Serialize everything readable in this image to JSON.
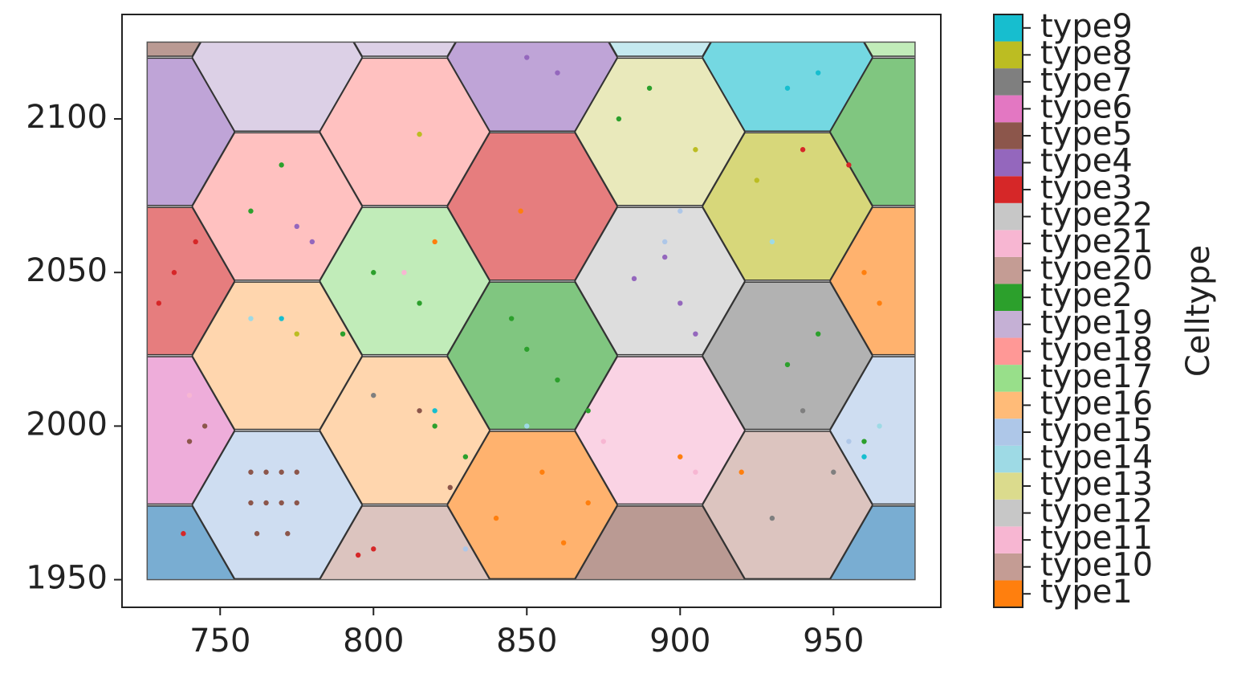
{
  "chart_data": {
    "type": "hexbin_scatter",
    "xlim": [
      718,
      985
    ],
    "ylim": [
      1941,
      2134
    ],
    "xticks": [
      750,
      800,
      850,
      900,
      950
    ],
    "yticks": [
      1950,
      2000,
      2050,
      2100
    ],
    "extent": [
      726.2,
      976.6,
      1950,
      2125
    ],
    "hex_radius": 27.7,
    "hex_opacity": 0.6,
    "hexagons": {
      "x": [
        727,
        727,
        727,
        727,
        727,
        768.6,
        768.6,
        768.6,
        768.6,
        810.2,
        810.2,
        810.2,
        810.2,
        810.2,
        851.8,
        851.8,
        851.8,
        851.8,
        893.4,
        893.4,
        893.4,
        893.4,
        893.4,
        935,
        935,
        935,
        935,
        976.6,
        976.6,
        976.6,
        976.6,
        976.6
      ],
      "y": [
        2144.4,
        2095.8,
        2047.2,
        1998.6,
        1950,
        2120,
        2071.5,
        2022.9,
        1974.3,
        2144.4,
        2095.8,
        2047.2,
        1998.6,
        1950,
        2120,
        2071.5,
        2022.9,
        1974.3,
        2144.4,
        2095.8,
        2047.2,
        1998.6,
        1950,
        2120,
        2071.5,
        2022.9,
        1974.3,
        2144.4,
        2095.8,
        2047.2,
        1998.6,
        1950
      ],
      "color": [
        "#8c564b",
        "#9467bd",
        "#d62728",
        "#e377c2",
        "#1f77b4",
        "#c5b0d5",
        "#ff9896",
        "#ffbb78",
        "#aec7e8",
        "#c5b0d5",
        "#ff9896",
        "#98df8a",
        "#ffbb78",
        "#c49c94",
        "#9467bd",
        "#d62728",
        "#2ca02c",
        "#ff7f0e",
        "#9edae5",
        "#dbdb8d",
        "#c7c7c7",
        "#f7b6d2",
        "#8c564b",
        "#17becf",
        "#bcbd22",
        "#7f7f7f",
        "#c49c94",
        "#98df8a",
        "#2ca02c",
        "#ff7f0e",
        "#aec7e8",
        "#1f77b4"
      ]
    },
    "colorbar_title": "Celltype",
    "series": [
      {
        "name": "type1",
        "color": "#ff7f0e",
        "x": [
          855,
          840,
          870,
          862,
          848,
          820,
          900,
          920,
          960,
          965
        ],
        "y": [
          1985,
          1970,
          1975,
          1962,
          2070,
          2060,
          1990,
          1985,
          2050,
          2040
        ]
      },
      {
        "name": "type10",
        "color": "#c49c94",
        "x": [],
        "y": []
      },
      {
        "name": "type11",
        "color": "#f7b6d2",
        "x": [],
        "y": []
      },
      {
        "name": "type12",
        "color": "#c7c7c7",
        "x": [],
        "y": []
      },
      {
        "name": "type13",
        "color": "#dbdb8d",
        "x": [],
        "y": []
      },
      {
        "name": "type14",
        "color": "#9edae5",
        "x": [
          760,
          930,
          850,
          965
        ],
        "y": [
          2035,
          2060,
          2000,
          2000
        ]
      },
      {
        "name": "type15",
        "color": "#aec7e8",
        "x": [
          895,
          900,
          830,
          955
        ],
        "y": [
          2060,
          2070,
          1960,
          1995
        ]
      },
      {
        "name": "type16",
        "color": "#ffbb78",
        "x": [],
        "y": []
      },
      {
        "name": "type17",
        "color": "#98df8a",
        "x": [],
        "y": []
      },
      {
        "name": "type18",
        "color": "#ff9896",
        "x": [],
        "y": []
      },
      {
        "name": "type19",
        "color": "#c5b0d5",
        "x": [],
        "y": []
      },
      {
        "name": "type2",
        "color": "#2ca02c",
        "x": [
          850,
          860,
          845,
          870,
          800,
          815,
          790,
          760,
          770,
          945,
          935,
          960,
          880,
          890,
          830,
          820
        ],
        "y": [
          2025,
          2015,
          2035,
          2005,
          2050,
          2040,
          2030,
          2070,
          2085,
          2030,
          2020,
          1995,
          2100,
          2110,
          1990,
          2000
        ]
      },
      {
        "name": "type20",
        "color": "#c49c94",
        "x": [],
        "y": []
      },
      {
        "name": "type21",
        "color": "#f7b6d2",
        "x": [
          875,
          905,
          810,
          740
        ],
        "y": [
          1995,
          1985,
          2050,
          2010
        ]
      },
      {
        "name": "type22",
        "color": "#c7c7c7",
        "x": [],
        "y": []
      },
      {
        "name": "type3",
        "color": "#d62728",
        "x": [
          735,
          730,
          742,
          738,
          800,
          795,
          940,
          955
        ],
        "y": [
          2050,
          2040,
          2060,
          1965,
          1960,
          1958,
          2090,
          2085
        ]
      },
      {
        "name": "type4",
        "color": "#9467bd",
        "x": [
          900,
          895,
          905,
          885,
          775,
          780,
          860,
          850
        ],
        "y": [
          2040,
          2055,
          2030,
          2048,
          2065,
          2060,
          2115,
          2120
        ]
      },
      {
        "name": "type5",
        "color": "#8c564b",
        "x": [
          760,
          765,
          770,
          775,
          760,
          765,
          770,
          775,
          762,
          772,
          740,
          745,
          815,
          825
        ],
        "y": [
          1985,
          1985,
          1985,
          1985,
          1975,
          1975,
          1975,
          1975,
          1965,
          1965,
          1995,
          2000,
          2005,
          1980
        ]
      },
      {
        "name": "type6",
        "color": "#e377c2",
        "x": [],
        "y": []
      },
      {
        "name": "type7",
        "color": "#7f7f7f",
        "x": [
          930,
          950,
          940,
          800
        ],
        "y": [
          1970,
          1985,
          2005,
          2010
        ]
      },
      {
        "name": "type8",
        "color": "#bcbd22",
        "x": [
          775,
          905,
          925,
          815
        ],
        "y": [
          2030,
          2090,
          2080,
          2095
        ]
      },
      {
        "name": "type9",
        "color": "#17becf",
        "x": [
          770,
          935,
          945,
          820,
          960
        ],
        "y": [
          2035,
          2110,
          2115,
          2005,
          1990
        ]
      }
    ]
  }
}
